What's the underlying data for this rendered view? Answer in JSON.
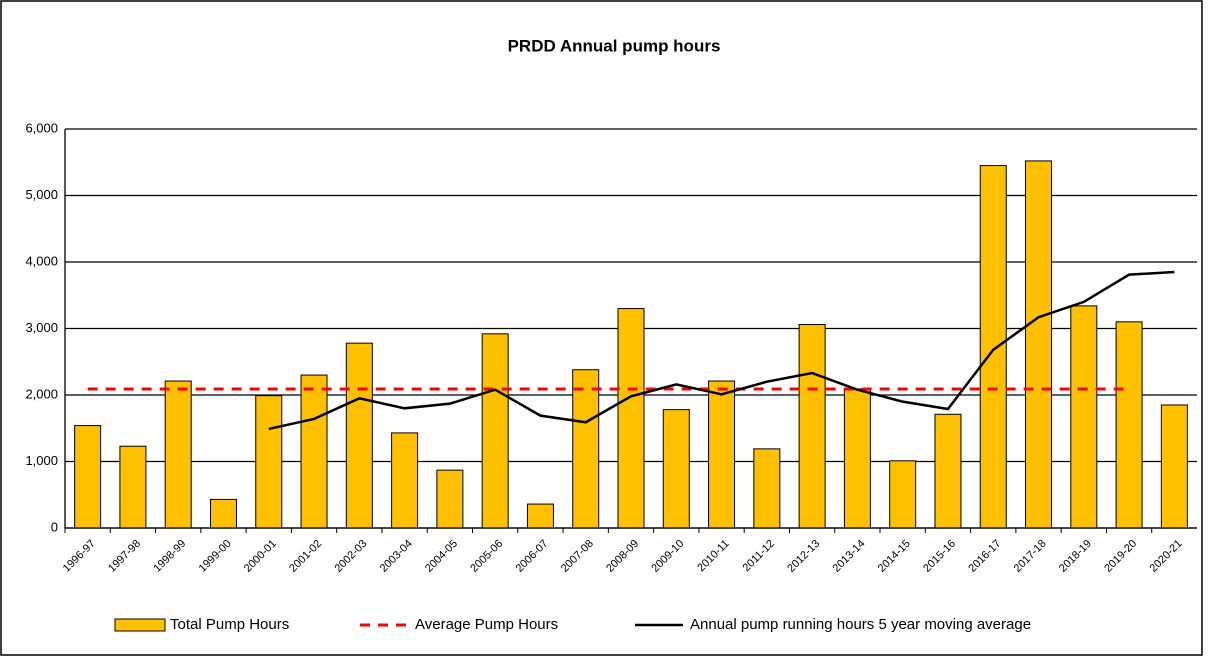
{
  "chart_data": {
    "type": "bar",
    "title": "PRDD Annual pump hours",
    "categories": [
      "1996-97",
      "1997-98",
      "1998-99",
      "1999-00",
      "2000-01",
      "2001-02",
      "2002-03",
      "2003-04",
      "2004-05",
      "2005-06",
      "2006-07",
      "2007-08",
      "2008-09",
      "2009-10",
      "2010-11",
      "2011-12",
      "2012-13",
      "2013-14",
      "2014-15",
      "2015-16",
      "2016-17",
      "2017-18",
      "2018-19",
      "2019-20",
      "2020-21"
    ],
    "series": [
      {
        "name": "Total Pump Hours",
        "type": "bar",
        "color": "#ffc000",
        "values": [
          1540,
          1230,
          2210,
          430,
          1990,
          2300,
          2780,
          1430,
          870,
          2920,
          360,
          2380,
          3300,
          1780,
          2210,
          1190,
          3060,
          2090,
          1010,
          1710,
          5450,
          5520,
          3340,
          3100,
          1850
        ]
      },
      {
        "name": "Average Pump Hours",
        "type": "line",
        "dashed": true,
        "color": "#ff0000",
        "values": [
          2090,
          2090,
          2090,
          2090,
          2090,
          2090,
          2090,
          2090,
          2090,
          2090,
          2090,
          2090,
          2090,
          2090,
          2090,
          2090,
          2090,
          2090,
          2090,
          2090,
          2090,
          2090,
          2090,
          2090,
          null
        ]
      },
      {
        "name": "Annual pump running hours 5 year moving average",
        "type": "line",
        "dashed": false,
        "color": "#000000",
        "values": [
          null,
          null,
          null,
          null,
          1490,
          1640,
          1950,
          1800,
          1870,
          2080,
          1690,
          1590,
          1980,
          2160,
          2010,
          2200,
          2330,
          2080,
          1900,
          1790,
          2680,
          3170,
          3400,
          3810,
          3850
        ]
      }
    ],
    "ylim": [
      0,
      6000
    ],
    "yticks": [
      0,
      {
        "value": 1000,
        "label": "1,000"
      },
      {
        "value": 2000,
        "label": "2,000"
      },
      {
        "value": 3000,
        "label": "3,000"
      },
      {
        "value": 4000,
        "label": "4,000"
      },
      {
        "value": 5000,
        "label": "5,000"
      },
      {
        "value": 6000,
        "label": "6,000"
      }
    ],
    "grid": true,
    "legend": "bottom"
  }
}
